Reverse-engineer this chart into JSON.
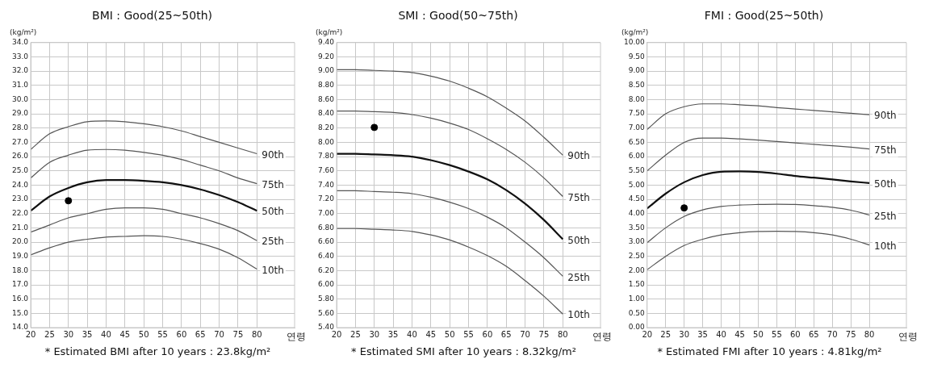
{
  "chart_data": [
    {
      "type": "line",
      "title": "BMI : Good(25~50th)",
      "ylabel": "(kg/m²)",
      "xlabel": "연령",
      "annotations": [
        "* Estimated BMI after 10 years : 23.8kg/m²"
      ],
      "x": [
        20,
        25,
        30,
        35,
        40,
        45,
        50,
        55,
        60,
        65,
        70,
        75,
        80
      ],
      "xlim": [
        20,
        90
      ],
      "xticks": [
        20,
        25,
        30,
        35,
        40,
        45,
        50,
        55,
        60,
        65,
        70,
        75,
        80
      ],
      "ylim": [
        14,
        34
      ],
      "yticks": [
        {
          "value": 14,
          "label": "14.0"
        },
        {
          "value": 15,
          "label": "15.0"
        },
        {
          "value": 16,
          "label": "16.0"
        },
        {
          "value": 17,
          "label": "17.0"
        },
        {
          "value": 18,
          "label": "18.0"
        },
        {
          "value": 19,
          "label": "19.0"
        },
        {
          "value": 20,
          "label": "20.0"
        },
        {
          "value": 21,
          "label": "21.0"
        },
        {
          "value": 22,
          "label": "22.0"
        },
        {
          "value": 23,
          "label": "23.0"
        },
        {
          "value": 24,
          "label": "24.0"
        },
        {
          "value": 25,
          "label": "25.0"
        },
        {
          "value": 26,
          "label": "26.0"
        },
        {
          "value": 27,
          "label": "27.0"
        },
        {
          "value": 28,
          "label": "28.0"
        },
        {
          "value": 29,
          "label": "29.0"
        },
        {
          "value": 30,
          "label": "30.0"
        },
        {
          "value": 31,
          "label": "31.0"
        },
        {
          "value": 32,
          "label": "32.0"
        },
        {
          "value": 33,
          "label": "33.0"
        },
        {
          "value": 34,
          "label": "34.0"
        }
      ],
      "grid": true,
      "legend": false,
      "line_style": "solid",
      "series": [
        {
          "name": "90th",
          "color": "#555555",
          "values": [
            26.5,
            27.6,
            28.1,
            28.45,
            28.5,
            28.45,
            28.3,
            28.1,
            27.8,
            27.4,
            27.0,
            26.6,
            26.2
          ]
        },
        {
          "name": "75th",
          "color": "#555555",
          "values": [
            24.5,
            25.6,
            26.1,
            26.45,
            26.5,
            26.45,
            26.3,
            26.1,
            25.8,
            25.4,
            25.0,
            24.5,
            24.1
          ]
        },
        {
          "name": "50th",
          "color": "#111111",
          "values": [
            22.2,
            23.2,
            23.8,
            24.2,
            24.35,
            24.35,
            24.3,
            24.2,
            24.0,
            23.7,
            23.3,
            22.8,
            22.2
          ]
        },
        {
          "name": "25th",
          "color": "#555555",
          "values": [
            20.7,
            21.2,
            21.7,
            22.0,
            22.3,
            22.4,
            22.4,
            22.3,
            22.0,
            21.7,
            21.3,
            20.8,
            20.1
          ]
        },
        {
          "name": "10th",
          "color": "#555555",
          "values": [
            19.1,
            19.6,
            20.0,
            20.2,
            20.35,
            20.4,
            20.45,
            20.4,
            20.2,
            19.9,
            19.5,
            18.9,
            18.1
          ]
        },
        {
          "type": "scatter",
          "color": "#000000",
          "marker": "circle",
          "values": [
            null,
            null,
            22.9,
            null,
            null,
            null,
            null,
            null,
            null,
            null,
            null,
            null,
            null
          ]
        }
      ]
    },
    {
      "type": "line",
      "title": "SMI : Good(50~75th)",
      "ylabel": "(kg/m²)",
      "xlabel": "연령",
      "annotations": [
        "* Estimated SMI after 10 years : 8.32kg/m²"
      ],
      "x": [
        20,
        25,
        30,
        35,
        40,
        45,
        50,
        55,
        60,
        65,
        70,
        75,
        80
      ],
      "xlim": [
        20,
        90
      ],
      "xticks": [
        20,
        25,
        30,
        35,
        40,
        45,
        50,
        55,
        60,
        65,
        70,
        75,
        80
      ],
      "ylim": [
        5.4,
        9.4
      ],
      "yticks": [
        {
          "value": 5.4,
          "label": "5.40"
        },
        {
          "value": 5.6,
          "label": "5.60"
        },
        {
          "value": 5.8,
          "label": "5.80"
        },
        {
          "value": 6,
          "label": "6.00"
        },
        {
          "value": 6.2,
          "label": "6.20"
        },
        {
          "value": 6.4,
          "label": "6.40"
        },
        {
          "value": 6.6,
          "label": "6.60"
        },
        {
          "value": 6.8,
          "label": "6.80"
        },
        {
          "value": 7,
          "label": "7.00"
        },
        {
          "value": 7.2,
          "label": "7.20"
        },
        {
          "value": 7.4,
          "label": "7.40"
        },
        {
          "value": 7.6,
          "label": "7.60"
        },
        {
          "value": 7.8,
          "label": "7.80"
        },
        {
          "value": 8,
          "label": "8.00"
        },
        {
          "value": 8.2,
          "label": "8.20"
        },
        {
          "value": 8.4,
          "label": "8.40"
        },
        {
          "value": 8.6,
          "label": "8.60"
        },
        {
          "value": 8.8,
          "label": "8.80"
        },
        {
          "value": 9,
          "label": "9.00"
        },
        {
          "value": 9.2,
          "label": "9.20"
        },
        {
          "value": 9.4,
          "label": "9.40"
        }
      ],
      "grid": true,
      "legend": false,
      "line_style": "solid",
      "series": [
        {
          "name": "90th",
          "color": "#555555",
          "values": [
            9.02,
            9.02,
            9.01,
            9.0,
            8.98,
            8.93,
            8.86,
            8.76,
            8.64,
            8.48,
            8.3,
            8.07,
            7.82
          ]
        },
        {
          "name": "75th",
          "color": "#555555",
          "values": [
            8.44,
            8.44,
            8.43,
            8.42,
            8.39,
            8.34,
            8.27,
            8.18,
            8.05,
            7.9,
            7.72,
            7.5,
            7.24
          ]
        },
        {
          "name": "50th",
          "color": "#111111",
          "values": [
            7.84,
            7.84,
            7.83,
            7.82,
            7.8,
            7.75,
            7.68,
            7.59,
            7.48,
            7.33,
            7.14,
            6.91,
            6.64
          ]
        },
        {
          "name": "25th",
          "color": "#555555",
          "values": [
            7.32,
            7.32,
            7.31,
            7.3,
            7.28,
            7.23,
            7.16,
            7.07,
            6.95,
            6.8,
            6.6,
            6.38,
            6.12
          ]
        },
        {
          "name": "10th",
          "color": "#555555",
          "values": [
            6.79,
            6.79,
            6.78,
            6.77,
            6.75,
            6.7,
            6.63,
            6.53,
            6.41,
            6.26,
            6.06,
            5.84,
            5.59
          ]
        },
        {
          "type": "scatter",
          "color": "#000000",
          "marker": "circle",
          "values": [
            null,
            null,
            8.21,
            null,
            null,
            null,
            null,
            null,
            null,
            null,
            null,
            null,
            null
          ]
        }
      ]
    },
    {
      "type": "line",
      "title": "FMI : Good(25~50th)",
      "ylabel": "(kg/m²)",
      "xlabel": "연령",
      "annotations": [
        "* Estimated FMI after 10 years : 4.81kg/m²"
      ],
      "x": [
        20,
        25,
        30,
        35,
        40,
        45,
        50,
        55,
        60,
        65,
        70,
        75,
        80
      ],
      "xlim": [
        20,
        90
      ],
      "xticks": [
        20,
        25,
        30,
        35,
        40,
        45,
        50,
        55,
        60,
        65,
        70,
        75,
        80
      ],
      "ylim": [
        0,
        10
      ],
      "yticks": [
        {
          "value": 0,
          "label": "0.00"
        },
        {
          "value": 0.5,
          "label": "0.50"
        },
        {
          "value": 1,
          "label": "1.00"
        },
        {
          "value": 1.5,
          "label": "1.50"
        },
        {
          "value": 2,
          "label": "2.00"
        },
        {
          "value": 2.5,
          "label": "2.50"
        },
        {
          "value": 3,
          "label": "3.00"
        },
        {
          "value": 3.5,
          "label": "3.50"
        },
        {
          "value": 4,
          "label": "4.00"
        },
        {
          "value": 4.5,
          "label": "4.50"
        },
        {
          "value": 5,
          "label": "5.00"
        },
        {
          "value": 5.5,
          "label": "5.50"
        },
        {
          "value": 6,
          "label": "6.00"
        },
        {
          "value": 6.5,
          "label": "6.50"
        },
        {
          "value": 7,
          "label": "7.00"
        },
        {
          "value": 7.5,
          "label": "7.50"
        },
        {
          "value": 8,
          "label": "8.00"
        },
        {
          "value": 8.5,
          "label": "8.50"
        },
        {
          "value": 9,
          "label": "9.00"
        },
        {
          "value": 9.5,
          "label": "9.50"
        },
        {
          "value": 10,
          "label": "10.00"
        }
      ],
      "grid": true,
      "legend": false,
      "line_style": "solid",
      "series": [
        {
          "name": "90th",
          "color": "#555555",
          "values": [
            6.95,
            7.5,
            7.75,
            7.85,
            7.85,
            7.82,
            7.78,
            7.72,
            7.67,
            7.62,
            7.57,
            7.52,
            7.47
          ]
        },
        {
          "name": "75th",
          "color": "#555555",
          "values": [
            5.5,
            6.05,
            6.5,
            6.65,
            6.65,
            6.62,
            6.58,
            6.53,
            6.48,
            6.43,
            6.38,
            6.33,
            6.27
          ]
        },
        {
          "name": "50th",
          "color": "#111111",
          "values": [
            4.18,
            4.7,
            5.1,
            5.35,
            5.47,
            5.48,
            5.46,
            5.4,
            5.32,
            5.26,
            5.2,
            5.13,
            5.07
          ]
        },
        {
          "name": "25th",
          "color": "#555555",
          "values": [
            2.98,
            3.5,
            3.9,
            4.13,
            4.25,
            4.3,
            4.32,
            4.33,
            4.32,
            4.28,
            4.22,
            4.12,
            3.95
          ]
        },
        {
          "name": "10th",
          "color": "#555555",
          "values": [
            2.03,
            2.5,
            2.88,
            3.1,
            3.25,
            3.33,
            3.37,
            3.38,
            3.37,
            3.33,
            3.25,
            3.1,
            2.9
          ]
        },
        {
          "type": "scatter",
          "color": "#000000",
          "marker": "circle",
          "values": [
            null,
            null,
            4.2,
            null,
            null,
            null,
            null,
            null,
            null,
            null,
            null,
            null,
            null
          ]
        }
      ]
    }
  ]
}
